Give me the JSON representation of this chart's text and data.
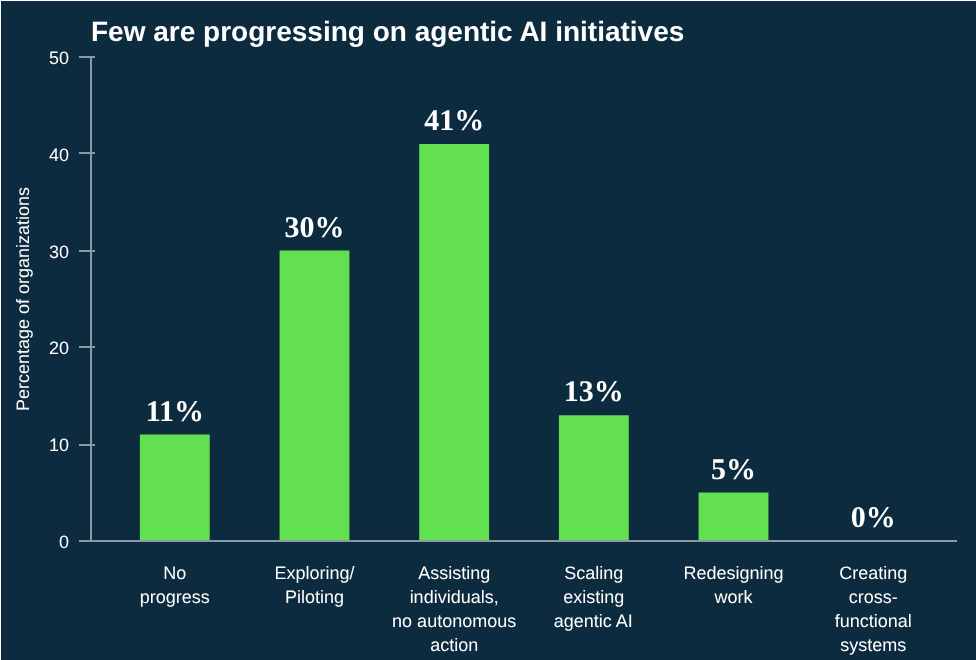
{
  "chart_data": {
    "type": "bar",
    "title": "Few are progressing on agentic AI initiatives",
    "ylabel": "Percentage of organizations",
    "categories": [
      "No\nprogress",
      "Exploring/\nPiloting",
      "Assisting\nindividuals,\nno autonomous\naction",
      "Scaling\nexisting\nagentic AI",
      "Redesigning\nwork",
      "Creating\ncross-\nfunctional\nsystems"
    ],
    "values": [
      11,
      30,
      41,
      13,
      5,
      0
    ],
    "value_labels": [
      "11%",
      "30%",
      "41%",
      "13%",
      "5%",
      "0%"
    ],
    "color": "#62e04f",
    "ylim": [
      0,
      50
    ],
    "yticks": [
      0,
      10,
      20,
      30,
      40,
      50
    ],
    "grid": false
  }
}
